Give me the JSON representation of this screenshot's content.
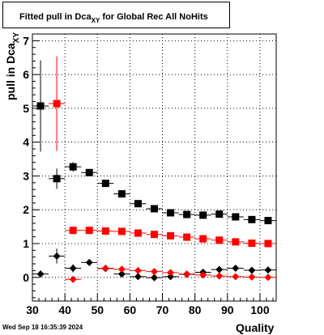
{
  "header": {
    "title_main": "Fitted pull in Dca",
    "title_sub": "XY",
    "title_tail": " for Global Rec All NoHits"
  },
  "footer": {
    "timestamp": "Wed Sep 18 16:35:39 2024"
  },
  "colors": {
    "frame": "#000000",
    "grid": "#000000",
    "series_black": "#000000",
    "series_red": "#ff0000"
  },
  "chart_data": {
    "type": "scatter",
    "title": "Fitted pull in Dca_XY for Global Rec All NoHits",
    "xlabel": "Quality",
    "ylabel_main": "pull in Dca",
    "ylabel_sub": "XY",
    "xlim": [
      30,
      105
    ],
    "ylim": [
      -0.7,
      7.2
    ],
    "xticks": [
      "30",
      "40",
      "50",
      "60",
      "70",
      "80",
      "90",
      "100"
    ],
    "yticks": [
      "0",
      "1",
      "2",
      "3",
      "4",
      "5",
      "6",
      "7"
    ],
    "grid": true,
    "series": [
      {
        "marker": "square",
        "color": "#000000",
        "points": [
          {
            "x": 32.5,
            "y": 5.07,
            "yerr": 1.35
          },
          {
            "x": 37.5,
            "y": 2.92,
            "yerr": 0.3
          },
          {
            "x": 42.5,
            "y": 3.27,
            "yerr": 0.14
          },
          {
            "x": 47.5,
            "y": 3.1,
            "yerr": 0.08
          },
          {
            "x": 52.5,
            "y": 2.78,
            "yerr": 0.06
          },
          {
            "x": 57.5,
            "y": 2.47,
            "yerr": 0.05
          },
          {
            "x": 62.5,
            "y": 2.18,
            "yerr": 0.05
          },
          {
            "x": 67.5,
            "y": 2.03,
            "yerr": 0.05
          },
          {
            "x": 72.5,
            "y": 1.91,
            "yerr": 0.05
          },
          {
            "x": 77.5,
            "y": 1.86,
            "yerr": 0.05
          },
          {
            "x": 82.5,
            "y": 1.84,
            "yerr": 0.05
          },
          {
            "x": 87.5,
            "y": 1.87,
            "yerr": 0.05
          },
          {
            "x": 92.5,
            "y": 1.79,
            "yerr": 0.05
          },
          {
            "x": 97.5,
            "y": 1.71,
            "yerr": 0.05
          },
          {
            "x": 102.5,
            "y": 1.68,
            "yerr": 0.05
          }
        ]
      },
      {
        "marker": "square",
        "color": "#ff0000",
        "points": [
          {
            "x": 37.5,
            "y": 5.14,
            "yerr": 1.4
          },
          {
            "x": 42.5,
            "y": 1.39,
            "yerr": 0.04
          },
          {
            "x": 47.5,
            "y": 1.39,
            "yerr": 0.03
          },
          {
            "x": 52.5,
            "y": 1.37,
            "yerr": 0.03
          },
          {
            "x": 57.5,
            "y": 1.36,
            "yerr": 0.03
          },
          {
            "x": 62.5,
            "y": 1.31,
            "yerr": 0.03
          },
          {
            "x": 67.5,
            "y": 1.27,
            "yerr": 0.03
          },
          {
            "x": 72.5,
            "y": 1.23,
            "yerr": 0.03
          },
          {
            "x": 77.5,
            "y": 1.19,
            "yerr": 0.03
          },
          {
            "x": 82.5,
            "y": 1.14,
            "yerr": 0.03
          },
          {
            "x": 87.5,
            "y": 1.1,
            "yerr": 0.03
          },
          {
            "x": 92.5,
            "y": 1.05,
            "yerr": 0.03
          },
          {
            "x": 97.5,
            "y": 1.01,
            "yerr": 0.03
          },
          {
            "x": 102.5,
            "y": 1.0,
            "yerr": 0.03
          }
        ]
      },
      {
        "marker": "diamond",
        "color": "#000000",
        "points": [
          {
            "x": 32.5,
            "y": 0.1,
            "yerr": 0.1
          },
          {
            "x": 37.5,
            "y": 0.63,
            "yerr": 0.22
          },
          {
            "x": 42.5,
            "y": 0.27,
            "yerr": 0.12
          },
          {
            "x": 47.5,
            "y": 0.44,
            "yerr": 0.08
          },
          {
            "x": 52.5,
            "y": 0.26,
            "yerr": 0.06
          },
          {
            "x": 57.5,
            "y": 0.1,
            "yerr": 0.05
          },
          {
            "x": 62.5,
            "y": 0.02,
            "yerr": 0.05
          },
          {
            "x": 67.5,
            "y": -0.01,
            "yerr": 0.05
          },
          {
            "x": 72.5,
            "y": 0.02,
            "yerr": 0.05
          },
          {
            "x": 77.5,
            "y": 0.09,
            "yerr": 0.05
          },
          {
            "x": 82.5,
            "y": 0.15,
            "yerr": 0.05
          },
          {
            "x": 87.5,
            "y": 0.23,
            "yerr": 0.05
          },
          {
            "x": 92.5,
            "y": 0.27,
            "yerr": 0.05
          },
          {
            "x": 97.5,
            "y": 0.21,
            "yerr": 0.05
          },
          {
            "x": 102.5,
            "y": 0.22,
            "yerr": 0.05
          }
        ]
      },
      {
        "marker": "diamond",
        "color": "#ff0000",
        "points": [
          {
            "x": 42.5,
            "y": -0.06,
            "yerr": 0.04
          },
          {
            "x": 52.5,
            "y": 0.27,
            "yerr": 0.03
          },
          {
            "x": 57.5,
            "y": 0.24,
            "yerr": 0.03
          },
          {
            "x": 62.5,
            "y": 0.2,
            "yerr": 0.03
          },
          {
            "x": 67.5,
            "y": 0.17,
            "yerr": 0.03
          },
          {
            "x": 72.5,
            "y": 0.14,
            "yerr": 0.03
          },
          {
            "x": 77.5,
            "y": 0.1,
            "yerr": 0.03
          },
          {
            "x": 82.5,
            "y": 0.07,
            "yerr": 0.03
          },
          {
            "x": 87.5,
            "y": 0.04,
            "yerr": 0.03
          },
          {
            "x": 92.5,
            "y": 0.02,
            "yerr": 0.03
          },
          {
            "x": 97.5,
            "y": 0.01,
            "yerr": 0.03
          },
          {
            "x": 102.5,
            "y": 0.0,
            "yerr": 0.03
          }
        ]
      }
    ]
  }
}
